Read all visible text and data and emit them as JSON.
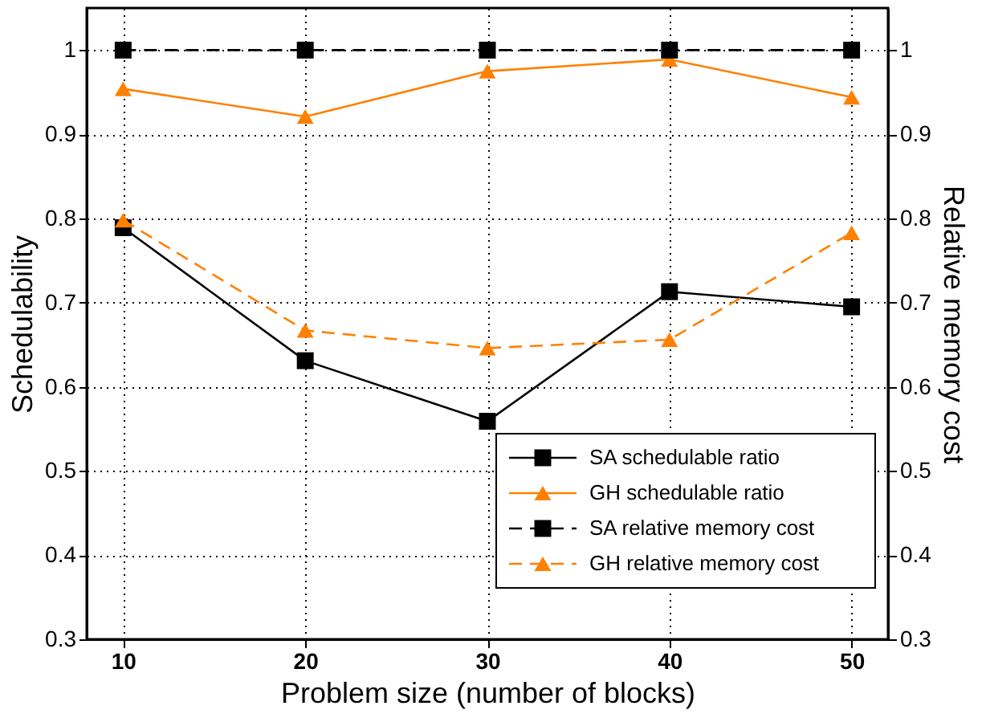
{
  "chart_data": {
    "type": "line",
    "xlabel": "Problem size (number of blocks)",
    "ylabel": "Schedulability",
    "y2label": "Relative memory cost",
    "x": [
      10,
      20,
      30,
      40,
      50
    ],
    "series": [
      {
        "name": "SA schedulable ratio",
        "color": "#000000",
        "values": [
          0.789,
          0.631,
          0.559,
          0.713,
          0.695
        ],
        "marker": "square",
        "line_style": "solid"
      },
      {
        "name": "GH schedulable ratio",
        "color": "#ff8000",
        "values": [
          0.954,
          0.921,
          0.975,
          0.989,
          0.944
        ],
        "marker": "triangle",
        "line_style": "solid"
      },
      {
        "name": "SA relative memory cost",
        "color": "#000000",
        "values": [
          1,
          1,
          1,
          1,
          1
        ],
        "marker": "square",
        "line_style": "dashed",
        "axis": "y2"
      },
      {
        "name": "GH relative memory cost",
        "color": "#ff8000",
        "values": [
          0.798,
          0.667,
          0.646,
          0.656,
          0.783
        ],
        "marker": "triangle",
        "line_style": "dashed",
        "axis": "y2"
      }
    ],
    "xlim": [
      8,
      52
    ],
    "xticks": [
      10,
      20,
      30,
      40,
      50
    ],
    "ylim": [
      0.3,
      1.05
    ],
    "yticks": [
      0.3,
      0.4,
      0.5,
      0.6,
      0.7,
      0.8,
      0.9,
      1
    ],
    "y2lim": [
      0.3,
      1.05
    ],
    "y2ticks": [
      0.3,
      0.4,
      0.5,
      0.6,
      0.7,
      0.8,
      0.9,
      1
    ],
    "grid": true,
    "legend": "bottom right"
  }
}
